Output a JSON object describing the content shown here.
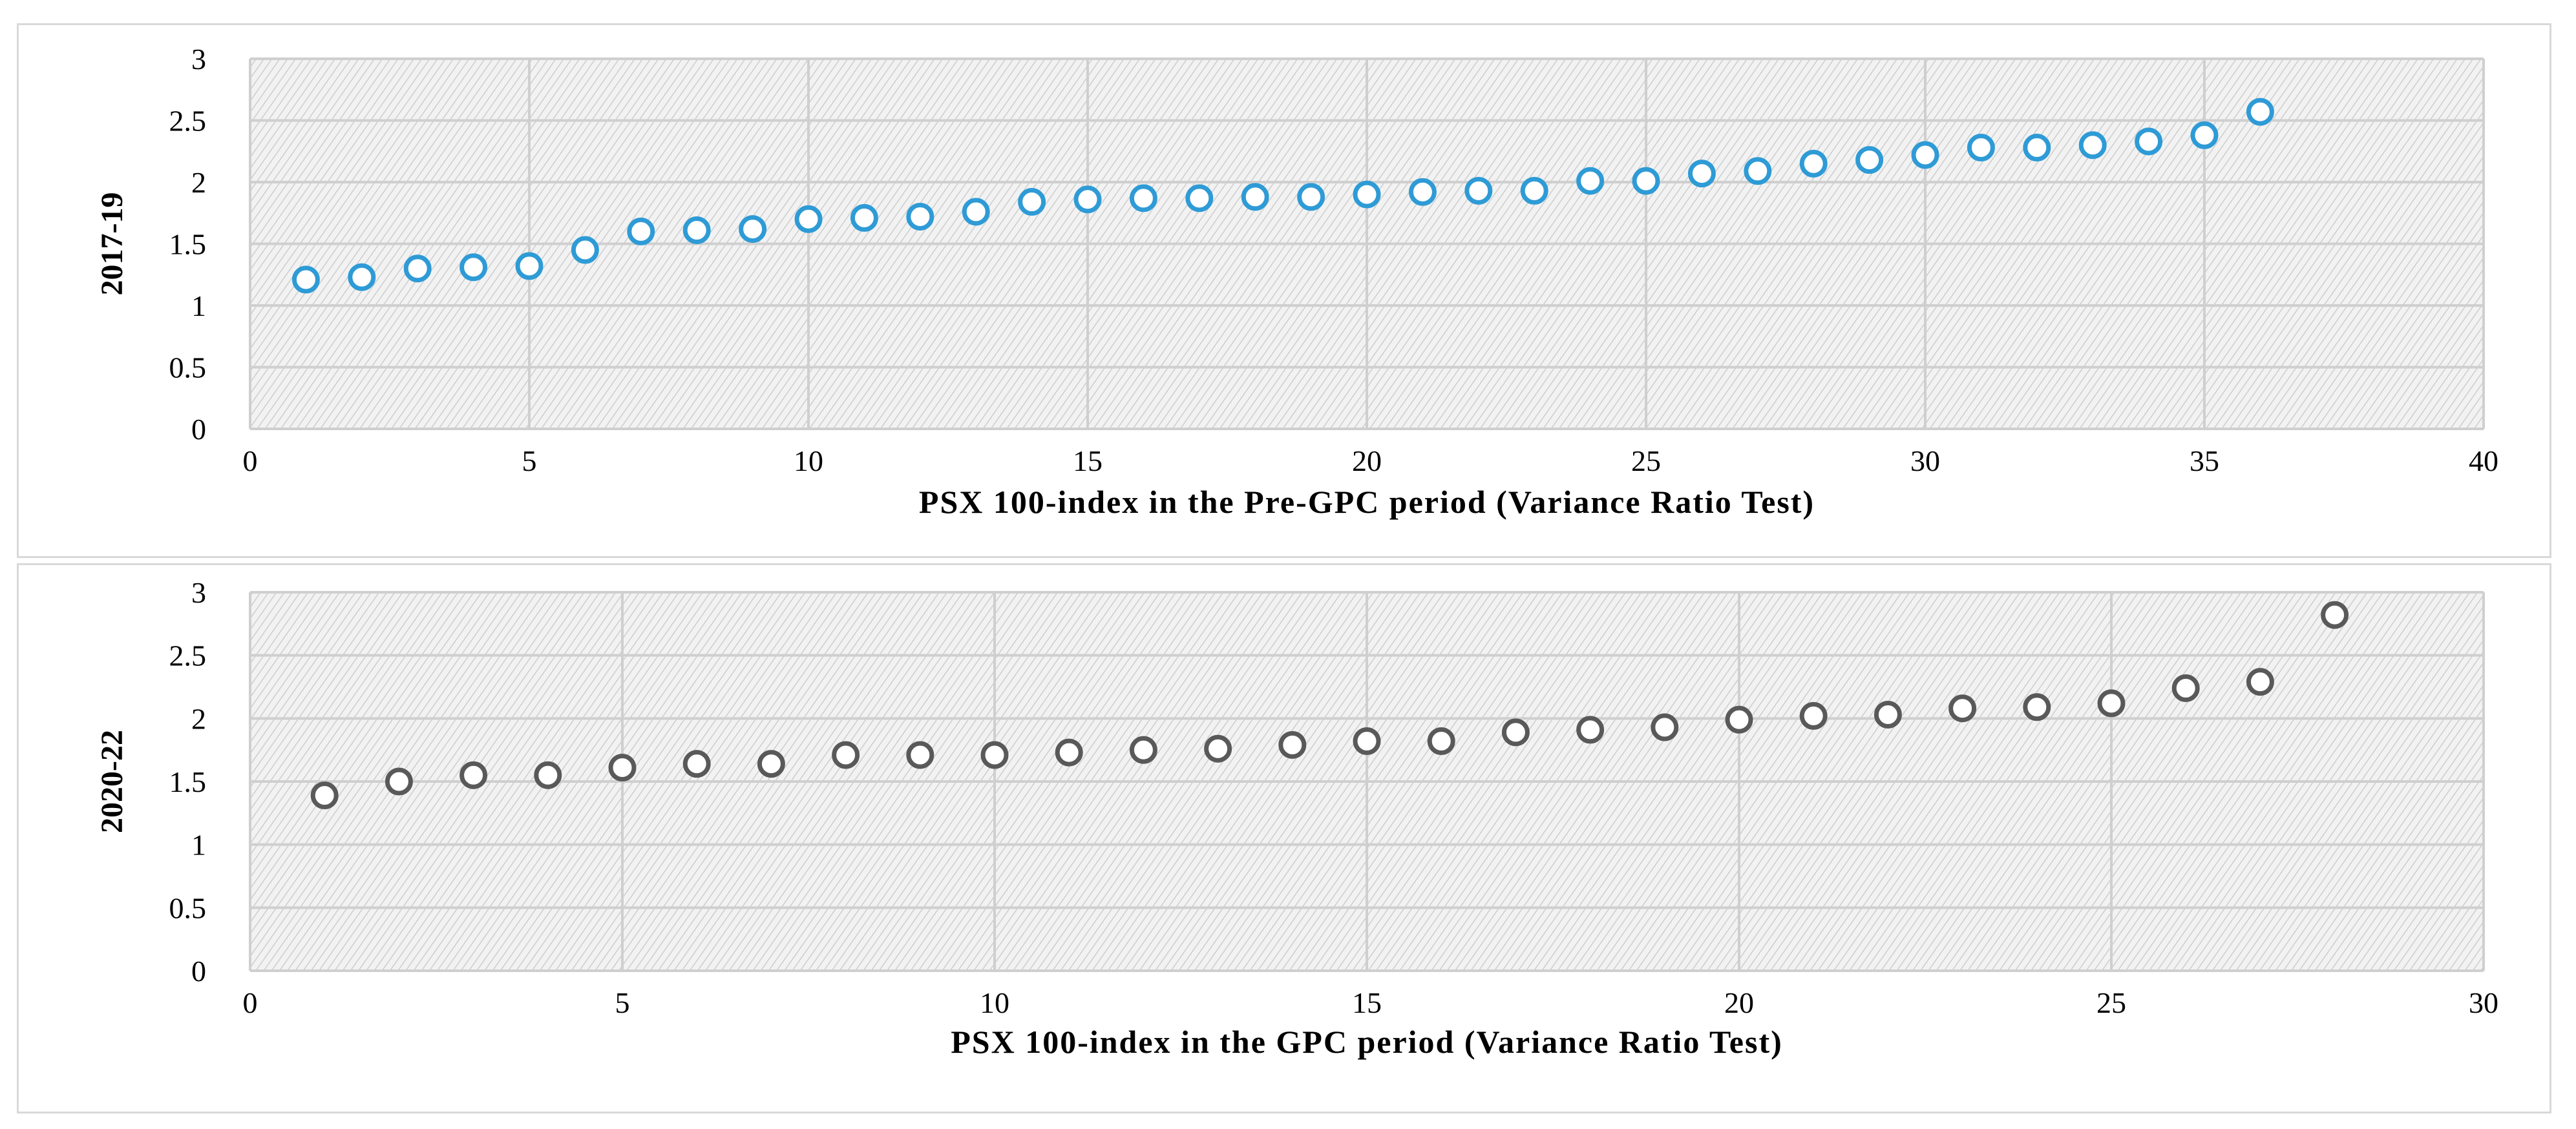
{
  "chart_data": [
    {
      "type": "scatter",
      "xlabel": "PSX 100-index in the Pre-GPC period (Variance Ratio Test)",
      "ylabel": "2017-19",
      "xlim": [
        0,
        40
      ],
      "ylim": [
        0,
        3
      ],
      "xticks": [
        0,
        5,
        10,
        15,
        20,
        25,
        30,
        35,
        40
      ],
      "yticks": [
        0,
        0.5,
        1,
        1.5,
        2,
        2.5,
        3
      ],
      "grid": true,
      "legend": "none",
      "marker_color": "#2e9bd6",
      "series": [
        {
          "x": [
            1,
            2,
            3,
            4,
            5,
            6,
            7,
            8,
            9,
            10,
            11,
            12,
            13,
            14,
            15,
            16,
            17,
            18,
            19,
            20,
            21,
            22,
            23,
            24,
            25,
            26,
            27,
            28,
            29,
            30,
            31,
            32,
            33,
            34,
            35,
            36
          ],
          "y": [
            1.21,
            1.23,
            1.3,
            1.31,
            1.32,
            1.45,
            1.6,
            1.61,
            1.62,
            1.7,
            1.71,
            1.72,
            1.76,
            1.84,
            1.86,
            1.87,
            1.87,
            1.88,
            1.88,
            1.9,
            1.92,
            1.93,
            1.93,
            2.01,
            2.01,
            2.07,
            2.09,
            2.15,
            2.18,
            2.22,
            2.28,
            2.28,
            2.3,
            2.33,
            2.38,
            2.57
          ]
        }
      ]
    },
    {
      "type": "scatter",
      "xlabel": "PSX 100-index in the GPC period (Variance Ratio Test)",
      "ylabel": "2020-22",
      "xlim": [
        0,
        30
      ],
      "ylim": [
        0,
        3
      ],
      "xticks": [
        0,
        5,
        10,
        15,
        20,
        25,
        30
      ],
      "yticks": [
        0,
        0.5,
        1,
        1.5,
        2,
        2.5,
        3
      ],
      "grid": true,
      "legend": "none",
      "marker_color": "#595959",
      "series": [
        {
          "x": [
            1,
            2,
            3,
            4,
            5,
            6,
            7,
            8,
            9,
            10,
            11,
            12,
            13,
            14,
            15,
            16,
            17,
            18,
            19,
            20,
            21,
            22,
            23,
            24,
            25,
            26,
            27,
            28
          ],
          "y": [
            1.39,
            1.5,
            1.55,
            1.55,
            1.61,
            1.64,
            1.64,
            1.71,
            1.71,
            1.71,
            1.73,
            1.75,
            1.76,
            1.79,
            1.82,
            1.82,
            1.89,
            1.91,
            1.93,
            1.99,
            2.02,
            2.03,
            2.08,
            2.09,
            2.12,
            2.24,
            2.29,
            2.82
          ]
        }
      ]
    }
  ]
}
